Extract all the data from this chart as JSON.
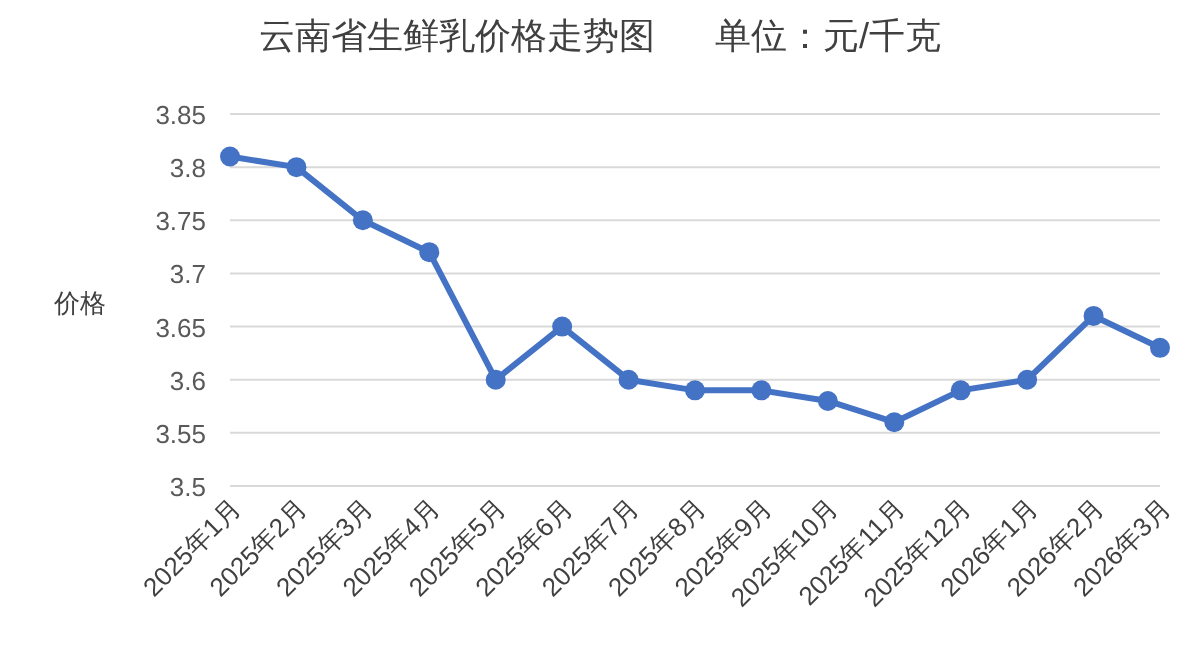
{
  "chart_data": {
    "type": "line",
    "title": "云南省生鲜乳价格走势图      单位：元/千克",
    "ylabel": "价格",
    "categories": [
      "2025年1月",
      "2025年2月",
      "2025年3月",
      "2025年4月",
      "2025年5月",
      "2025年6月",
      "2025年7月",
      "2025年8月",
      "2025年9月",
      "2025年10月",
      "2025年11月",
      "2025年12月",
      "2026年1月",
      "2026年2月",
      "2026年3月"
    ],
    "series": [
      {
        "color": "#4472c4",
        "values": [
          3.81,
          3.8,
          3.75,
          3.72,
          3.6,
          3.65,
          3.6,
          3.59,
          3.59,
          3.58,
          3.56,
          3.59,
          3.6,
          3.66,
          3.63
        ]
      }
    ],
    "ylim": [
      3.5,
      3.85
    ],
    "yticks": [
      3.5,
      3.55,
      3.6,
      3.65,
      3.7,
      3.75,
      3.8,
      3.85
    ],
    "grid": "y",
    "marker": "circle",
    "line_style": "solid"
  }
}
